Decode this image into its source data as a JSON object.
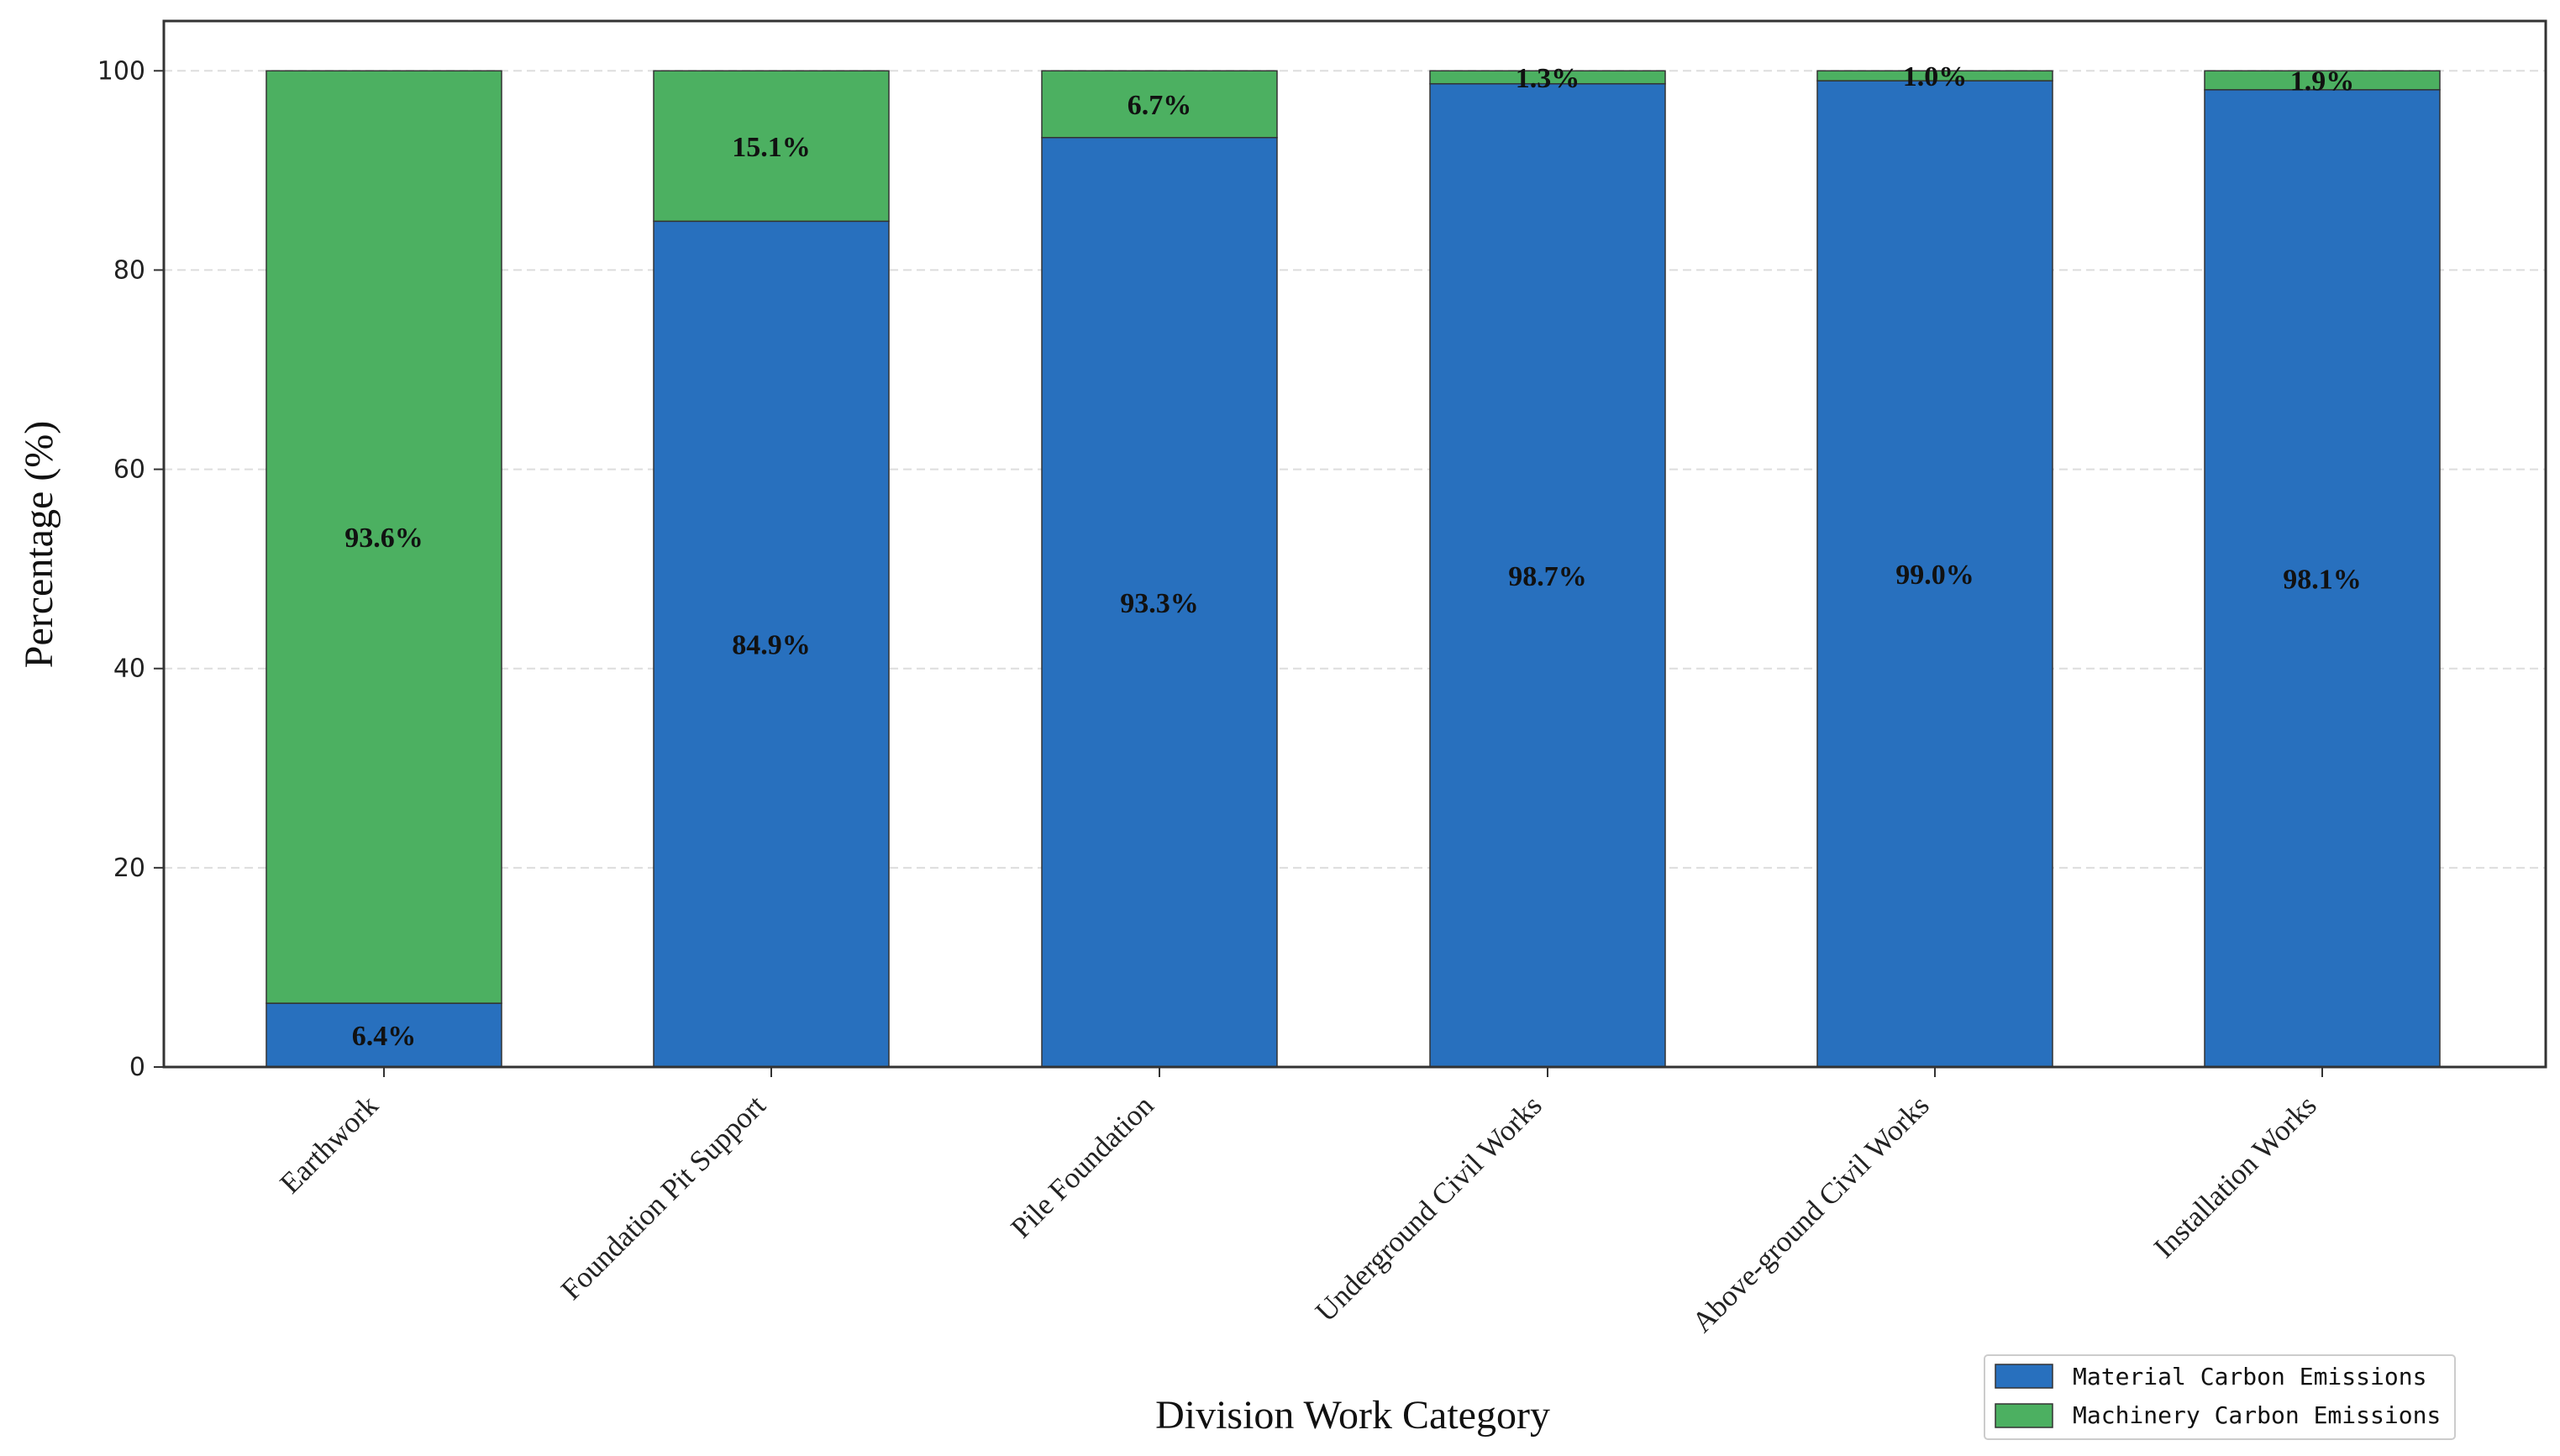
{
  "chart_data": {
    "type": "bar",
    "stacked": true,
    "categories": [
      "Earthwork",
      "Foundation Pit Support",
      "Pile Foundation",
      "Underground Civil Works",
      "Above-ground Civil Works",
      "Installation Works"
    ],
    "series": [
      {
        "name": "Material Carbon Emissions",
        "color": "#2870be",
        "values": [
          6.4,
          84.9,
          93.3,
          98.7,
          99.0,
          98.1
        ],
        "labels": [
          "6.4%",
          "84.9%",
          "93.3%",
          "98.7%",
          "99.0%",
          "98.1%"
        ]
      },
      {
        "name": "Machinery Carbon Emissions",
        "color": "#4cb061",
        "values": [
          93.6,
          15.1,
          6.7,
          1.3,
          1.0,
          1.9
        ],
        "labels": [
          "93.6%",
          "15.1%",
          "6.7%",
          "1.3%",
          "1.0%",
          "1.9%"
        ]
      }
    ],
    "xlabel": "Division Work Category",
    "ylabel": "Percentage (%)",
    "ylim": [
      0,
      105
    ],
    "yticks": [
      0,
      20,
      40,
      60,
      80,
      100
    ],
    "grid": true,
    "legend_position": "lower-right"
  }
}
